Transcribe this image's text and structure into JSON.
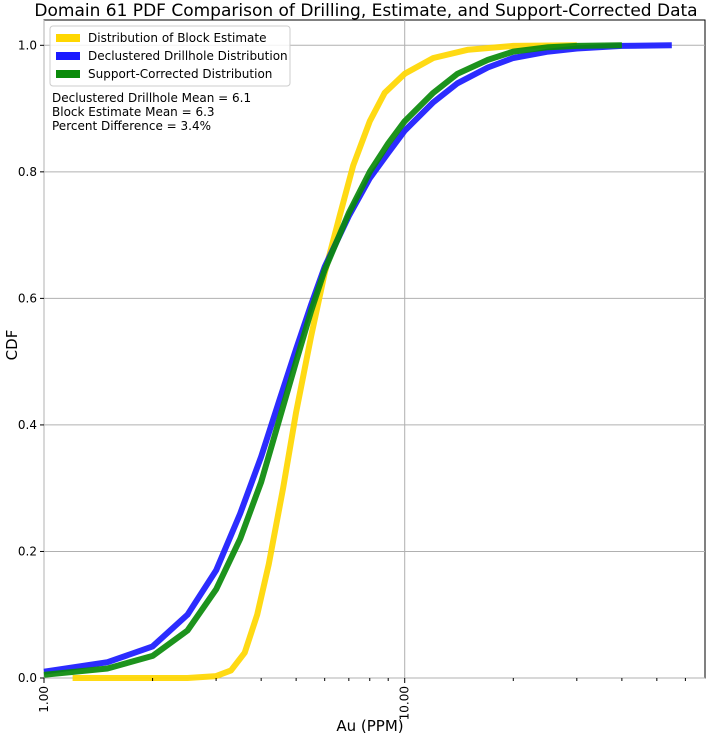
{
  "chart_data": {
    "type": "line",
    "title": "Domain 61 PDF Comparison of Drilling, Estimate, and Support-Corrected Data",
    "xlabel": "Au (PPM)",
    "ylabel": "CDF",
    "xscale": "log",
    "xlim": [
      1.0,
      68.0
    ],
    "ylim": [
      0.0,
      1.04
    ],
    "xticks": [
      {
        "value": 1.0,
        "label": "1.00"
      },
      {
        "value": 10.0,
        "label": "10.00"
      }
    ],
    "yticks": [
      {
        "value": 0.0,
        "label": "0.0"
      },
      {
        "value": 0.2,
        "label": "0.2"
      },
      {
        "value": 0.4,
        "label": "0.4"
      },
      {
        "value": 0.6,
        "label": "0.6"
      },
      {
        "value": 0.8,
        "label": "0.8"
      },
      {
        "value": 1.0,
        "label": "1.0"
      }
    ],
    "grid": true,
    "legend_position": "top-left",
    "series": [
      {
        "name": "Distribution of Block Estimate",
        "color": "#ffd700",
        "x": [
          1.2,
          2.5,
          3.0,
          3.3,
          3.6,
          3.9,
          4.2,
          4.6,
          5.0,
          5.5,
          6.0,
          6.6,
          7.2,
          8.0,
          8.8,
          10.0,
          12.0,
          15.0,
          20.0,
          30.0
        ],
        "y": [
          0.0,
          0.0,
          0.003,
          0.012,
          0.04,
          0.1,
          0.18,
          0.3,
          0.42,
          0.54,
          0.64,
          0.73,
          0.81,
          0.88,
          0.925,
          0.955,
          0.98,
          0.993,
          0.999,
          1.0
        ]
      },
      {
        "name": "Declustered Drillhole Distribution",
        "color": "#1a1aff",
        "x": [
          1.0,
          1.5,
          2.0,
          2.5,
          3.0,
          3.5,
          4.0,
          4.5,
          5.0,
          5.5,
          6.0,
          7.0,
          8.0,
          9.0,
          10.0,
          12.0,
          14.0,
          17.0,
          20.0,
          25.0,
          30.0,
          40.0,
          55.0
        ],
        "y": [
          0.01,
          0.025,
          0.05,
          0.1,
          0.17,
          0.26,
          0.35,
          0.44,
          0.52,
          0.59,
          0.65,
          0.73,
          0.79,
          0.83,
          0.865,
          0.91,
          0.94,
          0.965,
          0.98,
          0.99,
          0.995,
          0.999,
          1.0
        ]
      },
      {
        "name": "Support-Corrected Distribution",
        "color": "#0a8a0a",
        "x": [
          1.0,
          1.5,
          2.0,
          2.5,
          3.0,
          3.5,
          4.0,
          4.5,
          5.0,
          5.5,
          6.0,
          7.0,
          8.0,
          9.0,
          10.0,
          12.0,
          14.0,
          17.0,
          20.0,
          25.0,
          30.0,
          40.0
        ],
        "y": [
          0.005,
          0.015,
          0.035,
          0.075,
          0.14,
          0.22,
          0.31,
          0.41,
          0.5,
          0.58,
          0.645,
          0.735,
          0.8,
          0.845,
          0.88,
          0.925,
          0.955,
          0.977,
          0.99,
          0.997,
          0.999,
          1.0
        ]
      }
    ],
    "annotations": [
      "Declustered Drillhole Mean = 6.1",
      "Block Estimate Mean = 6.3",
      "Percent Difference = 3.4%"
    ]
  }
}
